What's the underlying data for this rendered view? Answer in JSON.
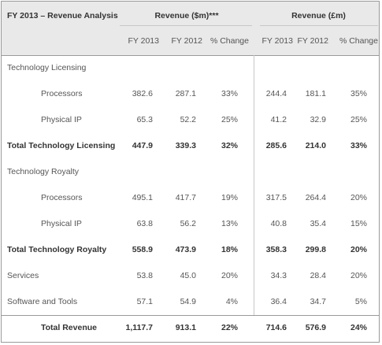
{
  "header": {
    "title": "FY 2013 – Revenue Analysis",
    "usd_group": "Revenue ($m)***",
    "gbp_group": "Revenue (£m)",
    "cols": [
      "FY 2013",
      "FY 2012",
      "% Change",
      "FY 2013",
      "FY 2012",
      "% Change"
    ]
  },
  "rows": {
    "tl_section": "Technology Licensing",
    "tl_proc": {
      "label": "Processors",
      "v": [
        "382.6",
        "287.1",
        "33%",
        "244.4",
        "181.1",
        "35%"
      ]
    },
    "tl_pip": {
      "label": "Physical IP",
      "v": [
        "65.3",
        "52.2",
        "25%",
        "41.2",
        "32.9",
        "25%"
      ]
    },
    "tl_total": {
      "label": "Total Technology Licensing",
      "v": [
        "447.9",
        "339.3",
        "32%",
        "285.6",
        "214.0",
        "33%"
      ]
    },
    "tr_section": "Technology Royalty",
    "tr_proc": {
      "label": "Processors",
      "v": [
        "495.1",
        "417.7",
        "19%",
        "317.5",
        "264.4",
        "20%"
      ]
    },
    "tr_pip": {
      "label": "Physical IP",
      "v": [
        "63.8",
        "56.2",
        "13%",
        "40.8",
        "35.4",
        "15%"
      ]
    },
    "tr_total": {
      "label": "Total Technology Royalty",
      "v": [
        "558.9",
        "473.9",
        "18%",
        "358.3",
        "299.8",
        "20%"
      ]
    },
    "services": {
      "label": "Services",
      "v": [
        "53.8",
        "45.0",
        "20%",
        "34.3",
        "28.4",
        "20%"
      ]
    },
    "software": {
      "label": "Software and Tools",
      "v": [
        "57.1",
        "54.9",
        "4%",
        "36.4",
        "34.7",
        "5%"
      ]
    },
    "total": {
      "label": "Total Revenue",
      "v": [
        "1,117.7",
        "913.1",
        "22%",
        "714.6",
        "576.9",
        "24%"
      ]
    }
  }
}
